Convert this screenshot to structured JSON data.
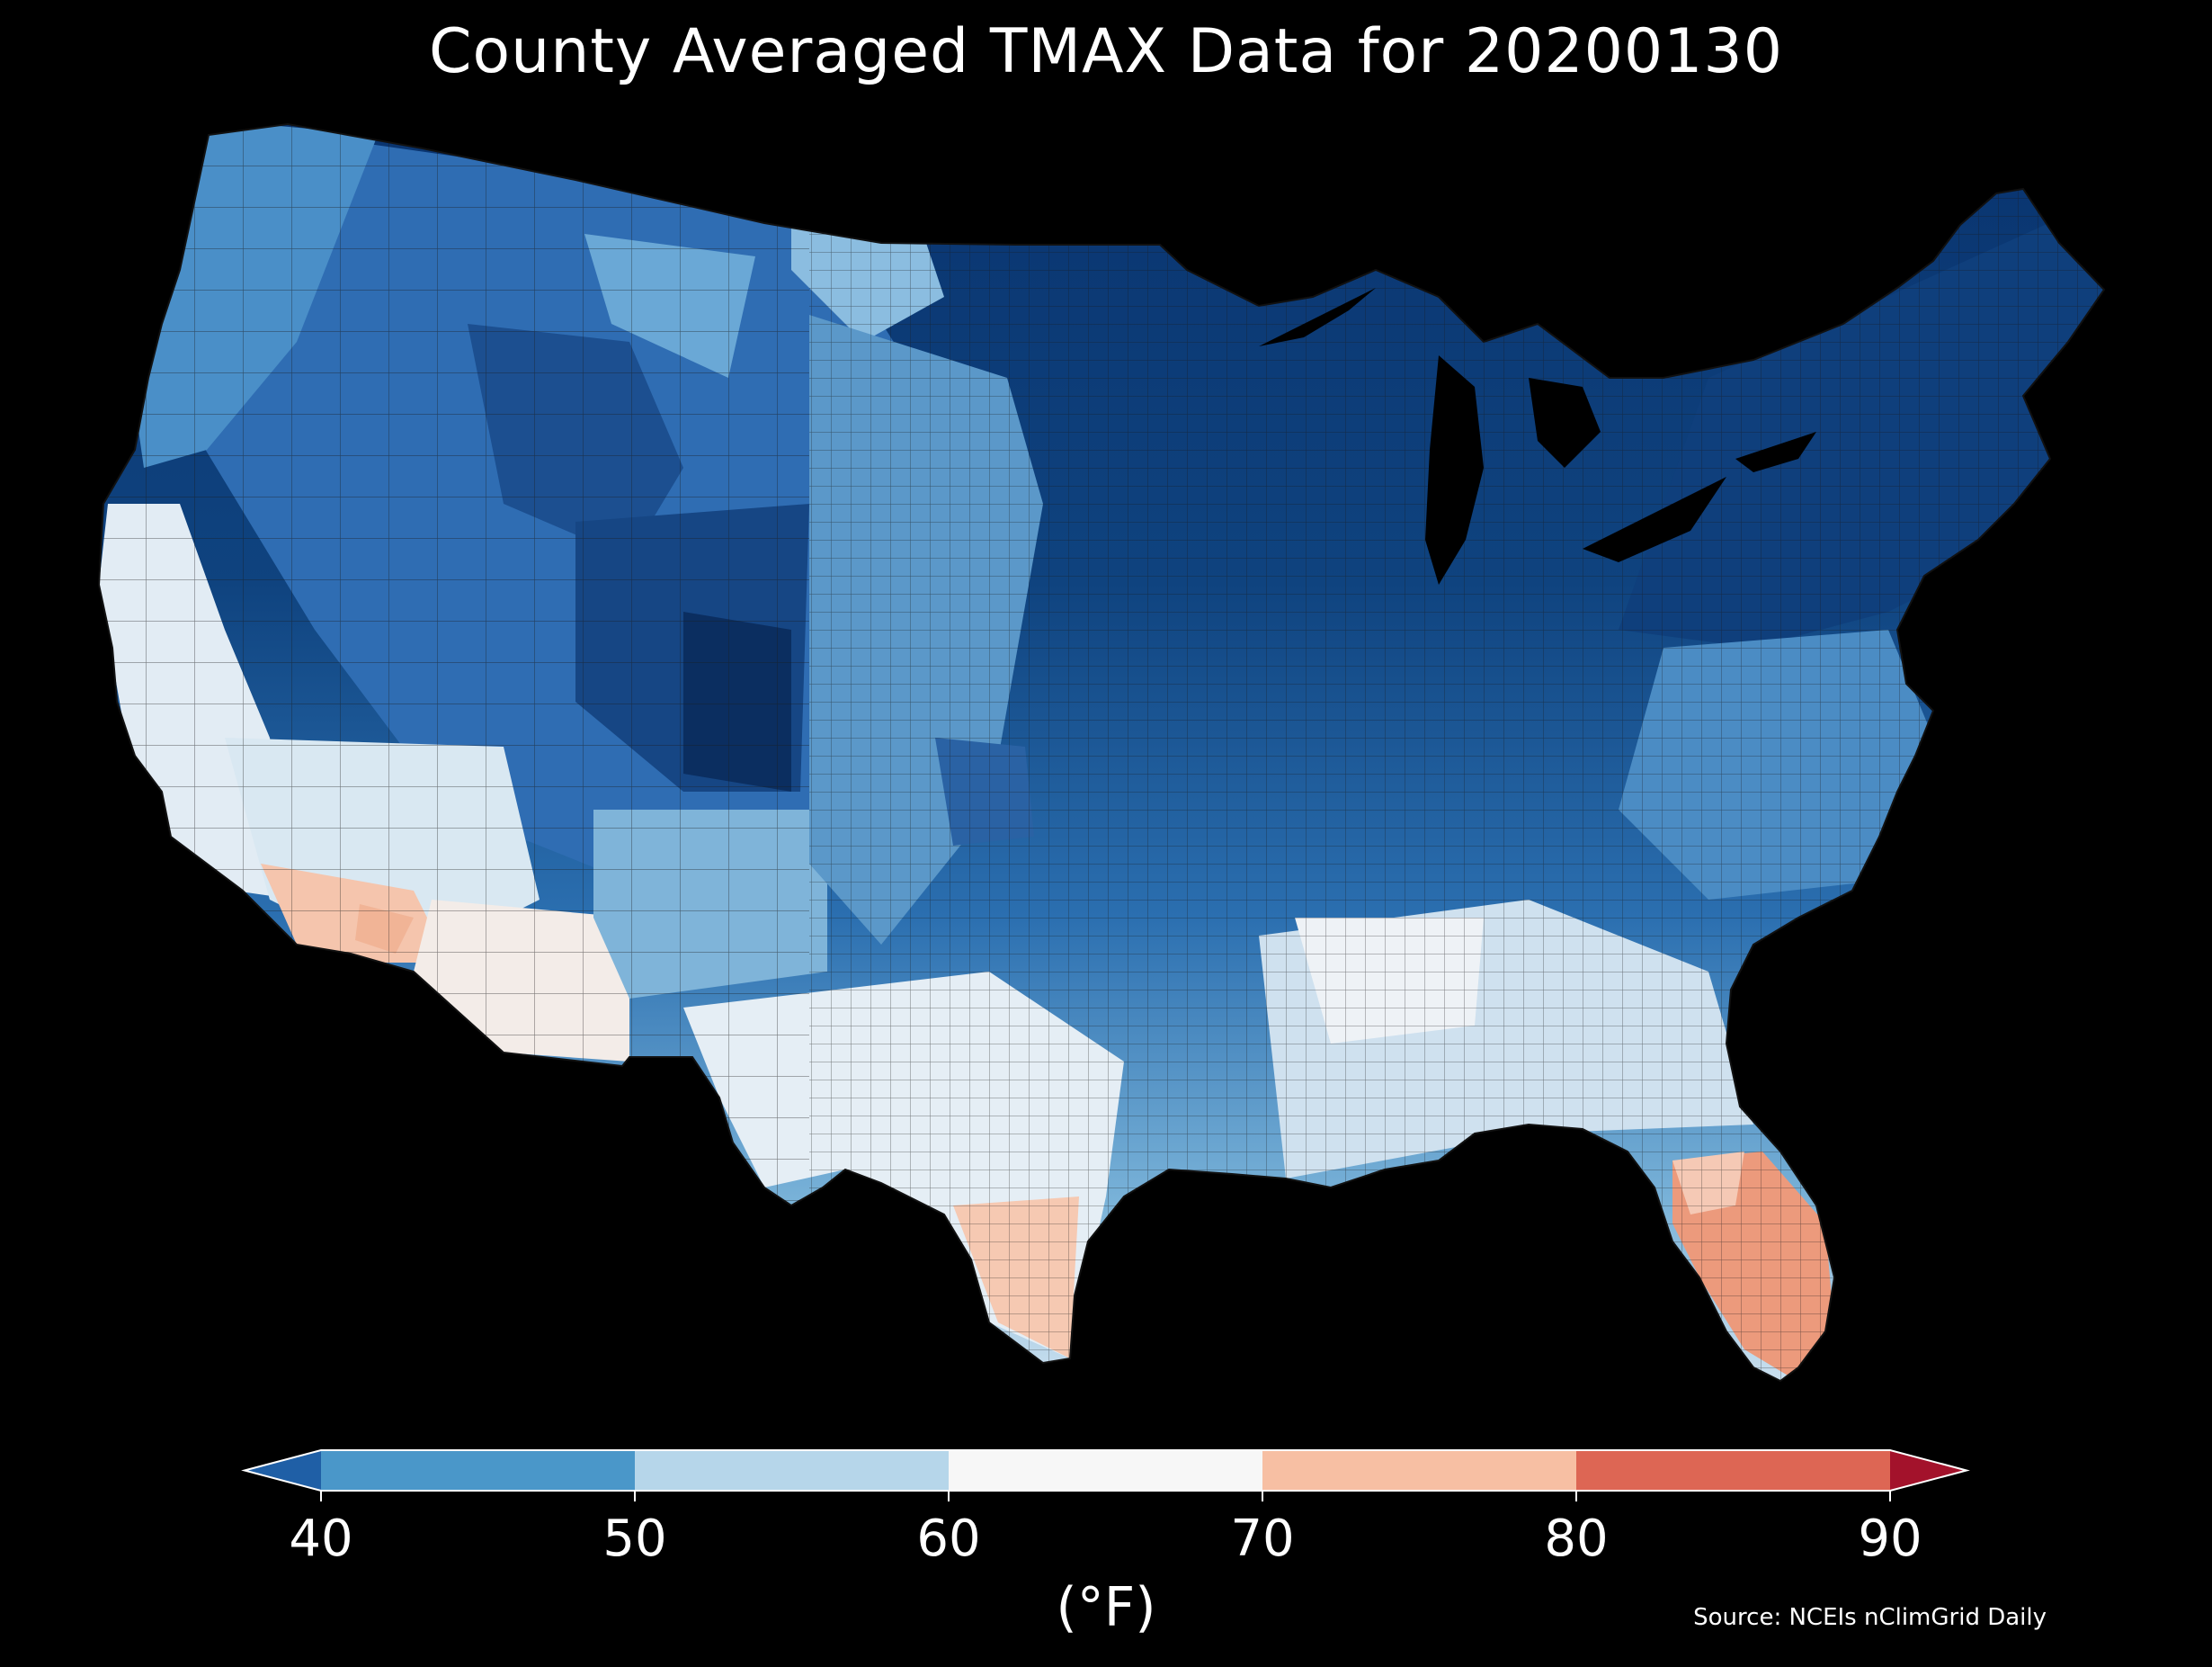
{
  "title": "County Averaged TMAX Data for 20200130",
  "colorbar": {
    "label": "(°F)",
    "ticks": [
      "40",
      "50",
      "60",
      "70",
      "80",
      "90"
    ],
    "bins": [
      {
        "range": "<40",
        "color": "#1f5fa6"
      },
      {
        "range": "40-50",
        "color": "#4a97c9"
      },
      {
        "range": "50-60",
        "color": "#b6d6ea"
      },
      {
        "range": "60-70",
        "color": "#f7f7f7"
      },
      {
        "range": "70-80",
        "color": "#f7bfa3"
      },
      {
        "range": "80-90",
        "color": "#dd6654"
      },
      {
        "range": ">90",
        "color": "#a3122b"
      }
    ]
  },
  "source": "Source: NCEIs nClimGrid Daily",
  "palette": {
    "background": "#000000",
    "coldest": "#08306b",
    "cold": "#1f5fa6",
    "cool": "#4a97c9",
    "mild": "#b6d6ea",
    "neutral": "#f2f2f2",
    "warm": "#f7bfa3",
    "hot": "#e8896c"
  }
}
